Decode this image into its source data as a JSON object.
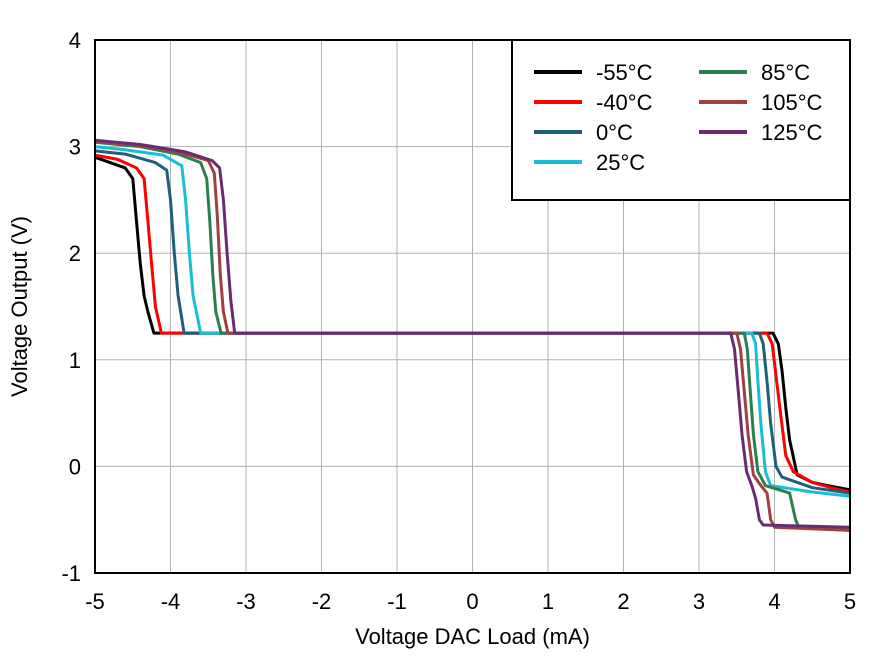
{
  "chart_data": {
    "type": "line",
    "xlabel": "Voltage DAC Load (mA)",
    "ylabel": "Voltage Output (V)",
    "xlim": [
      -5,
      5
    ],
    "ylim": [
      -1,
      4
    ],
    "xticks": [
      "-5",
      "-4",
      "-3",
      "-2",
      "-1",
      "0",
      "1",
      "2",
      "3",
      "4",
      "5"
    ],
    "yticks": [
      "-1",
      "0",
      "1",
      "2",
      "3",
      "4"
    ],
    "grid": true,
    "legend_position": "top-right",
    "series": [
      {
        "name": "-55°C",
        "color": "#000000",
        "points": [
          [
            -5,
            2.9
          ],
          [
            -4.8,
            2.85
          ],
          [
            -4.6,
            2.8
          ],
          [
            -4.5,
            2.7
          ],
          [
            -4.45,
            2.3
          ],
          [
            -4.4,
            1.9
          ],
          [
            -4.35,
            1.6
          ],
          [
            -4.3,
            1.45
          ],
          [
            -4.22,
            1.25
          ],
          [
            3.3,
            1.25
          ],
          [
            3.98,
            1.25
          ],
          [
            4.05,
            1.15
          ],
          [
            4.1,
            0.9
          ],
          [
            4.15,
            0.55
          ],
          [
            4.2,
            0.25
          ],
          [
            4.3,
            -0.08
          ],
          [
            4.5,
            -0.15
          ],
          [
            4.7,
            -0.18
          ],
          [
            5,
            -0.22
          ]
        ]
      },
      {
        "name": "-40°C",
        "color": "#ff0000",
        "points": [
          [
            -5,
            2.92
          ],
          [
            -4.7,
            2.88
          ],
          [
            -4.45,
            2.8
          ],
          [
            -4.35,
            2.7
          ],
          [
            -4.3,
            2.3
          ],
          [
            -4.25,
            1.9
          ],
          [
            -4.2,
            1.5
          ],
          [
            -4.12,
            1.25
          ],
          [
            3.3,
            1.25
          ],
          [
            3.9,
            1.25
          ],
          [
            3.97,
            1.15
          ],
          [
            4.02,
            0.85
          ],
          [
            4.08,
            0.5
          ],
          [
            4.15,
            0.1
          ],
          [
            4.25,
            -0.05
          ],
          [
            4.5,
            -0.15
          ],
          [
            4.75,
            -0.2
          ],
          [
            5,
            -0.24
          ]
        ]
      },
      {
        "name": "0°C",
        "color": "#1f5f7a",
        "points": [
          [
            -5,
            2.96
          ],
          [
            -4.6,
            2.93
          ],
          [
            -4.2,
            2.85
          ],
          [
            -4.05,
            2.78
          ],
          [
            -4.0,
            2.5
          ],
          [
            -3.95,
            2.0
          ],
          [
            -3.9,
            1.6
          ],
          [
            -3.82,
            1.25
          ],
          [
            3.3,
            1.25
          ],
          [
            3.8,
            1.25
          ],
          [
            3.85,
            1.15
          ],
          [
            3.9,
            0.8
          ],
          [
            3.95,
            0.4
          ],
          [
            4.02,
            0.0
          ],
          [
            4.1,
            -0.1
          ],
          [
            4.5,
            -0.2
          ],
          [
            5,
            -0.25
          ]
        ]
      },
      {
        "name": "25°C",
        "color": "#1abdd4",
        "points": [
          [
            -5,
            3.0
          ],
          [
            -4.6,
            2.97
          ],
          [
            -4.1,
            2.92
          ],
          [
            -3.85,
            2.82
          ],
          [
            -3.8,
            2.5
          ],
          [
            -3.75,
            2.0
          ],
          [
            -3.7,
            1.6
          ],
          [
            -3.6,
            1.25
          ],
          [
            3.3,
            1.25
          ],
          [
            3.7,
            1.25
          ],
          [
            3.75,
            1.15
          ],
          [
            3.78,
            0.8
          ],
          [
            3.82,
            0.4
          ],
          [
            3.88,
            -0.05
          ],
          [
            3.95,
            -0.18
          ],
          [
            4.5,
            -0.24
          ],
          [
            5,
            -0.28
          ]
        ]
      },
      {
        "name": "85°C",
        "color": "#2e7d4f",
        "points": [
          [
            -5,
            3.04
          ],
          [
            -4.4,
            3.0
          ],
          [
            -3.9,
            2.93
          ],
          [
            -3.6,
            2.85
          ],
          [
            -3.52,
            2.7
          ],
          [
            -3.48,
            2.3
          ],
          [
            -3.44,
            1.8
          ],
          [
            -3.4,
            1.45
          ],
          [
            -3.33,
            1.25
          ],
          [
            3.3,
            1.25
          ],
          [
            3.6,
            1.25
          ],
          [
            3.64,
            1.1
          ],
          [
            3.68,
            0.7
          ],
          [
            3.72,
            0.3
          ],
          [
            3.78,
            -0.05
          ],
          [
            3.88,
            -0.18
          ],
          [
            4.2,
            -0.25
          ],
          [
            4.28,
            -0.5
          ],
          [
            4.32,
            -0.57
          ],
          [
            5,
            -0.6
          ]
        ]
      },
      {
        "name": "105°C",
        "color": "#a04040",
        "points": [
          [
            -5,
            3.05
          ],
          [
            -4.4,
            3.01
          ],
          [
            -3.9,
            2.95
          ],
          [
            -3.5,
            2.87
          ],
          [
            -3.42,
            2.75
          ],
          [
            -3.38,
            2.35
          ],
          [
            -3.34,
            1.8
          ],
          [
            -3.3,
            1.45
          ],
          [
            -3.24,
            1.25
          ],
          [
            3.3,
            1.25
          ],
          [
            3.5,
            1.25
          ],
          [
            3.55,
            1.1
          ],
          [
            3.6,
            0.7
          ],
          [
            3.65,
            0.3
          ],
          [
            3.72,
            -0.08
          ],
          [
            3.82,
            -0.18
          ],
          [
            3.9,
            -0.25
          ],
          [
            3.95,
            -0.5
          ],
          [
            4.0,
            -0.57
          ],
          [
            5,
            -0.6
          ]
        ]
      },
      {
        "name": "125°C",
        "color": "#6a2c70",
        "points": [
          [
            -5,
            3.06
          ],
          [
            -4.4,
            3.02
          ],
          [
            -3.8,
            2.95
          ],
          [
            -3.45,
            2.87
          ],
          [
            -3.35,
            2.8
          ],
          [
            -3.3,
            2.5
          ],
          [
            -3.25,
            2.0
          ],
          [
            -3.2,
            1.55
          ],
          [
            -3.15,
            1.25
          ],
          [
            3.3,
            1.25
          ],
          [
            3.42,
            1.25
          ],
          [
            3.47,
            1.1
          ],
          [
            3.52,
            0.7
          ],
          [
            3.57,
            0.3
          ],
          [
            3.63,
            -0.05
          ],
          [
            3.7,
            -0.18
          ],
          [
            3.75,
            -0.3
          ],
          [
            3.8,
            -0.5
          ],
          [
            3.85,
            -0.55
          ],
          [
            5,
            -0.57
          ]
        ]
      }
    ]
  }
}
